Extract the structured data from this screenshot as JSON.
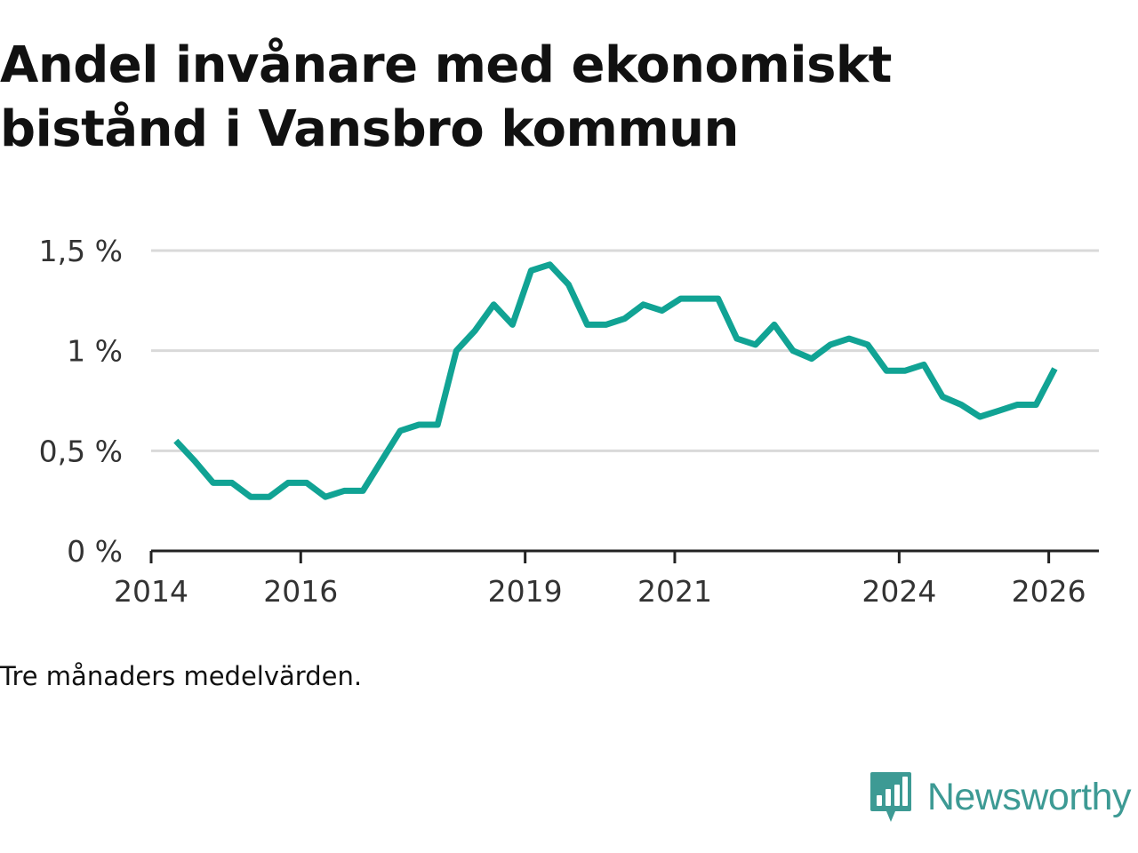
{
  "title_line1": "Andel invånare med ekonomiskt",
  "title_line2": "bistånd i Vansbro kommun",
  "note": "Tre månaders medelvärden.",
  "brand": {
    "name": "Newsworthy",
    "icon": "bar-chart-speech-bubble-icon",
    "color": "#3d9a94"
  },
  "colors": {
    "line": "#11a394",
    "grid": "#d9d9d9",
    "axis": "#222222"
  },
  "chart_data": {
    "type": "line",
    "title": "Andel invånare med ekonomiskt bistånd i Vansbro kommun",
    "xlabel": "",
    "ylabel": "",
    "ylim": [
      0,
      1.5
    ],
    "xlim": [
      2014.0,
      2026.67
    ],
    "y_ticks": [
      {
        "value": 0,
        "label": "0 %"
      },
      {
        "value": 0.5,
        "label": "0,5 %"
      },
      {
        "value": 1,
        "label": "1 %"
      },
      {
        "value": 1.5,
        "label": "1,5 %"
      }
    ],
    "x_ticks": [
      {
        "value": 2014,
        "label": "2014"
      },
      {
        "value": 2016,
        "label": "2016"
      },
      {
        "value": 2019,
        "label": "2019"
      },
      {
        "value": 2021,
        "label": "2021"
      },
      {
        "value": 2024,
        "label": "2024"
      },
      {
        "value": 2026,
        "label": "2026"
      }
    ],
    "grid": true,
    "series": [
      {
        "name": "Andel invånare med ekonomiskt bistånd",
        "x": [
          2014.33,
          2014.58,
          2014.83,
          2015.08,
          2015.33,
          2015.58,
          2015.83,
          2016.08,
          2016.33,
          2016.58,
          2016.83,
          2017.08,
          2017.33,
          2017.58,
          2017.83,
          2018.08,
          2018.33,
          2018.58,
          2018.83,
          2019.08,
          2019.33,
          2019.58,
          2019.83,
          2020.08,
          2020.33,
          2020.58,
          2020.83,
          2021.08,
          2021.33,
          2021.58,
          2021.83,
          2022.08,
          2022.33,
          2022.58,
          2022.83,
          2023.08,
          2023.33,
          2023.58,
          2023.83,
          2024.08,
          2024.33,
          2024.58,
          2024.83,
          2025.08,
          2025.33,
          2025.58,
          2025.83,
          2026.08
        ],
        "values": [
          0.55,
          0.45,
          0.34,
          0.34,
          0.27,
          0.27,
          0.34,
          0.34,
          0.27,
          0.3,
          0.3,
          0.45,
          0.6,
          0.63,
          0.63,
          1.0,
          1.1,
          1.23,
          1.13,
          1.4,
          1.43,
          1.33,
          1.13,
          1.13,
          1.16,
          1.23,
          1.2,
          1.26,
          1.26,
          1.26,
          1.06,
          1.03,
          1.13,
          1.0,
          0.96,
          1.03,
          1.06,
          1.03,
          0.9,
          0.9,
          0.93,
          0.77,
          0.73,
          0.67,
          0.7,
          0.73,
          0.73,
          0.91
        ]
      }
    ]
  }
}
